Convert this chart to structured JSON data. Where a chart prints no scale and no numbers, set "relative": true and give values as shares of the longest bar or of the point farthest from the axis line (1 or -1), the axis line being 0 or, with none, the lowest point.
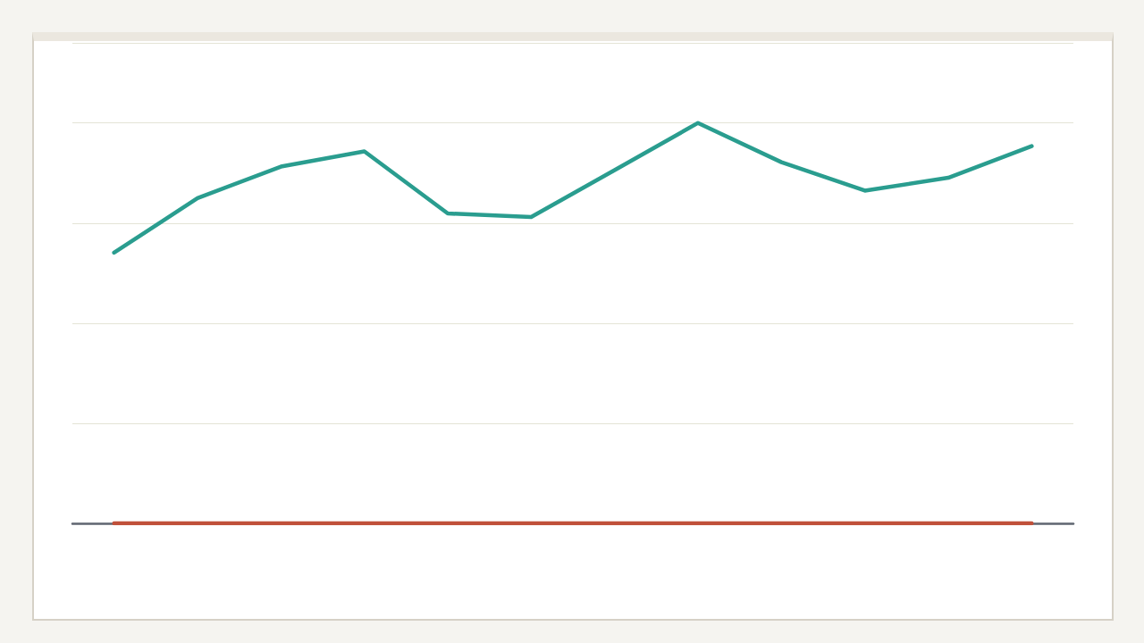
{
  "chart_data": {
    "type": "line",
    "relative": true,
    "categories": [
      null,
      null,
      null,
      null,
      null,
      null,
      null,
      null,
      null,
      null,
      null,
      null
    ],
    "series": [
      {
        "color": "#2a9d8f",
        "values": [
          0.676,
          0.812,
          0.891,
          0.929,
          0.774,
          0.765,
          0.882,
          1,
          0.902,
          0.831,
          0.863,
          0.942
        ]
      },
      {
        "color": "#c0503a",
        "values": [
          0,
          0,
          0,
          0,
          0,
          0,
          0,
          0,
          0,
          0,
          0,
          0
        ]
      }
    ],
    "grid": "y",
    "marker": "none",
    "line_style": "solid"
  }
}
